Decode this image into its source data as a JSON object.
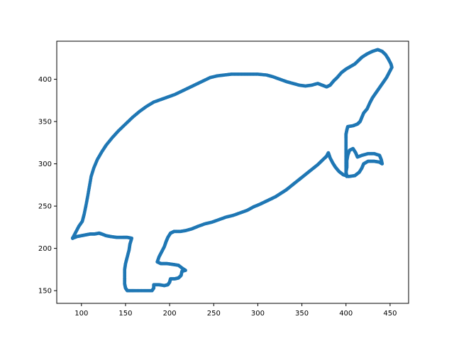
{
  "chart_data": {
    "type": "scatter",
    "title": "",
    "xlabel": "",
    "ylabel": "",
    "xlim": [
      72,
      471
    ],
    "ylim": [
      135,
      445
    ],
    "grid": false,
    "legend": "none",
    "marker_color": "#1f77b4",
    "x_ticks": [
      100,
      150,
      200,
      250,
      300,
      350,
      400,
      450
    ],
    "y_ticks": [
      150,
      200,
      250,
      300,
      350,
      400
    ],
    "x_tick_labels": [
      "100",
      "150",
      "200",
      "250",
      "300",
      "350",
      "400",
      "450"
    ],
    "y_tick_labels": [
      "150",
      "200",
      "250",
      "300",
      "350",
      "400"
    ],
    "series": [
      {
        "points": [
          [
            90,
            212
          ],
          [
            95,
            214
          ],
          [
            100,
            215
          ],
          [
            105,
            216
          ],
          [
            110,
            217
          ],
          [
            115,
            217
          ],
          [
            120,
            218
          ],
          [
            123,
            217
          ],
          [
            128,
            215
          ],
          [
            133,
            214
          ],
          [
            140,
            213
          ],
          [
            147,
            213
          ],
          [
            152,
            213
          ],
          [
            157,
            212
          ],
          [
            155,
            205
          ],
          [
            154,
            198
          ],
          [
            152,
            190
          ],
          [
            150,
            182
          ],
          [
            149,
            175
          ],
          [
            149,
            165
          ],
          [
            149,
            158
          ],
          [
            150,
            153
          ],
          [
            152,
            150
          ],
          [
            160,
            150
          ],
          [
            170,
            150
          ],
          [
            180,
            150
          ],
          [
            182,
            153
          ],
          [
            182,
            157
          ],
          [
            188,
            157
          ],
          [
            194,
            156
          ],
          [
            198,
            157
          ],
          [
            200,
            160
          ],
          [
            201,
            164
          ],
          [
            206,
            164
          ],
          [
            210,
            165
          ],
          [
            213,
            168
          ],
          [
            214,
            173
          ],
          [
            218,
            174
          ],
          [
            215,
            176
          ],
          [
            210,
            180
          ],
          [
            204,
            181
          ],
          [
            197,
            182
          ],
          [
            190,
            182
          ],
          [
            186,
            184
          ],
          [
            188,
            190
          ],
          [
            191,
            196
          ],
          [
            194,
            202
          ],
          [
            196,
            208
          ],
          [
            198,
            213
          ],
          [
            201,
            218
          ],
          [
            205,
            220
          ],
          [
            212,
            220
          ],
          [
            218,
            221
          ],
          [
            225,
            223
          ],
          [
            232,
            226
          ],
          [
            240,
            229
          ],
          [
            248,
            231
          ],
          [
            256,
            234
          ],
          [
            264,
            237
          ],
          [
            272,
            239
          ],
          [
            280,
            242
          ],
          [
            288,
            245
          ],
          [
            295,
            249
          ],
          [
            302,
            252
          ],
          [
            308,
            255
          ],
          [
            314,
            258
          ],
          [
            320,
            261
          ],
          [
            326,
            265
          ],
          [
            332,
            269
          ],
          [
            338,
            274
          ],
          [
            344,
            279
          ],
          [
            350,
            284
          ],
          [
            356,
            289
          ],
          [
            362,
            294
          ],
          [
            368,
            299
          ],
          [
            373,
            304
          ],
          [
            378,
            309
          ],
          [
            380,
            313
          ],
          [
            382,
            307
          ],
          [
            385,
            301
          ],
          [
            388,
            296
          ],
          [
            392,
            291
          ],
          [
            397,
            287
          ],
          [
            403,
            285
          ],
          [
            410,
            286
          ],
          [
            415,
            290
          ],
          [
            418,
            295
          ],
          [
            420,
            300
          ],
          [
            425,
            303
          ],
          [
            432,
            303
          ],
          [
            438,
            302
          ],
          [
            441,
            300
          ],
          [
            440,
            305
          ],
          [
            438,
            310
          ],
          [
            432,
            312
          ],
          [
            425,
            312
          ],
          [
            418,
            310
          ],
          [
            413,
            308
          ],
          [
            411,
            313
          ],
          [
            408,
            318
          ],
          [
            404,
            316
          ],
          [
            402,
            310
          ],
          [
            401,
            304
          ],
          [
            401,
            296
          ],
          [
            400,
            290
          ],
          [
            401,
            285
          ],
          [
            400,
            290
          ],
          [
            400,
            300
          ],
          [
            400,
            310
          ],
          [
            400,
            320
          ],
          [
            400,
            330
          ],
          [
            400,
            335
          ],
          [
            401,
            340
          ],
          [
            402,
            344
          ],
          [
            408,
            345
          ],
          [
            413,
            347
          ],
          [
            416,
            350
          ],
          [
            418,
            355
          ],
          [
            420,
            360
          ],
          [
            424,
            365
          ],
          [
            427,
            372
          ],
          [
            430,
            378
          ],
          [
            434,
            384
          ],
          [
            438,
            390
          ],
          [
            442,
            396
          ],
          [
            446,
            402
          ],
          [
            449,
            408
          ],
          [
            452,
            414
          ],
          [
            451,
            418
          ],
          [
            448,
            424
          ],
          [
            445,
            429
          ],
          [
            441,
            433
          ],
          [
            436,
            435
          ],
          [
            430,
            433
          ],
          [
            424,
            430
          ],
          [
            418,
            426
          ],
          [
            414,
            422
          ],
          [
            410,
            418
          ],
          [
            405,
            415
          ],
          [
            400,
            412
          ],
          [
            395,
            408
          ],
          [
            390,
            402
          ],
          [
            386,
            398
          ],
          [
            382,
            393
          ],
          [
            378,
            391
          ],
          [
            373,
            393
          ],
          [
            368,
            395
          ],
          [
            361,
            393
          ],
          [
            354,
            392
          ],
          [
            347,
            393
          ],
          [
            340,
            395
          ],
          [
            333,
            397
          ],
          [
            325,
            400
          ],
          [
            317,
            403
          ],
          [
            310,
            405
          ],
          [
            300,
            406
          ],
          [
            290,
            406
          ],
          [
            280,
            406
          ],
          [
            270,
            406
          ],
          [
            262,
            405
          ],
          [
            254,
            404
          ],
          [
            246,
            402
          ],
          [
            238,
            398
          ],
          [
            230,
            394
          ],
          [
            222,
            390
          ],
          [
            214,
            386
          ],
          [
            206,
            382
          ],
          [
            198,
            379
          ],
          [
            190,
            376
          ],
          [
            182,
            373
          ],
          [
            174,
            368
          ],
          [
            166,
            362
          ],
          [
            158,
            355
          ],
          [
            150,
            347
          ],
          [
            142,
            339
          ],
          [
            135,
            331
          ],
          [
            128,
            322
          ],
          [
            123,
            314
          ],
          [
            118,
            305
          ],
          [
            114,
            295
          ],
          [
            111,
            285
          ],
          [
            109,
            273
          ],
          [
            107,
            261
          ],
          [
            105,
            250
          ],
          [
            103,
            240
          ],
          [
            101,
            232
          ],
          [
            97,
            226
          ],
          [
            93,
            218
          ],
          [
            90,
            212
          ]
        ]
      }
    ]
  }
}
